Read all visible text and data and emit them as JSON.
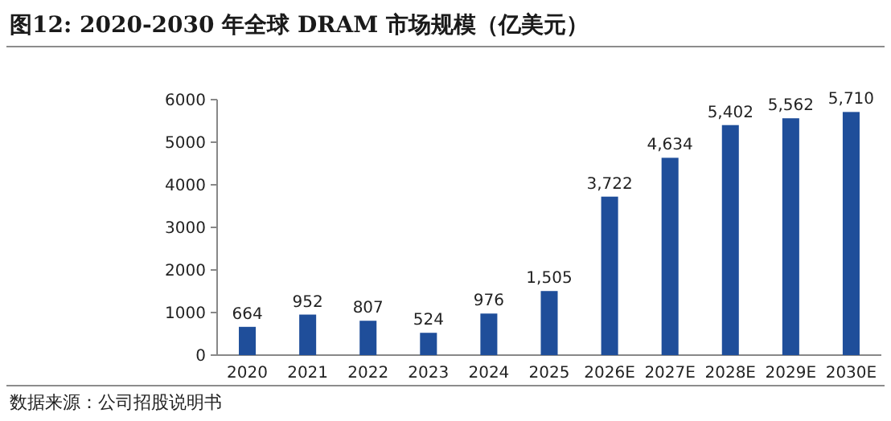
{
  "chart_data": {
    "type": "bar",
    "title": "图12: 2020-2030 年全球 DRAM 市场规模（亿美元）",
    "categories": [
      "2020",
      "2021",
      "2022",
      "2023",
      "2024",
      "2025",
      "2026E",
      "2027E",
      "2028E",
      "2029E",
      "2030E"
    ],
    "values": [
      664,
      952,
      807,
      524,
      976,
      1505,
      3722,
      4634,
      5402,
      5562,
      5710
    ],
    "color": "#1f4e9a",
    "ylim": [
      0,
      6000
    ],
    "yticks": [
      0,
      1000,
      2000,
      3000,
      4000,
      5000,
      6000
    ],
    "value_labels": [
      "664",
      "952",
      "807",
      "524",
      "976",
      "1,505",
      "3,722",
      "4,634",
      "5,402",
      "5,562",
      "5,710"
    ],
    "grid": false,
    "annotations": [
      "数据来源：公司招股说明书"
    ]
  }
}
